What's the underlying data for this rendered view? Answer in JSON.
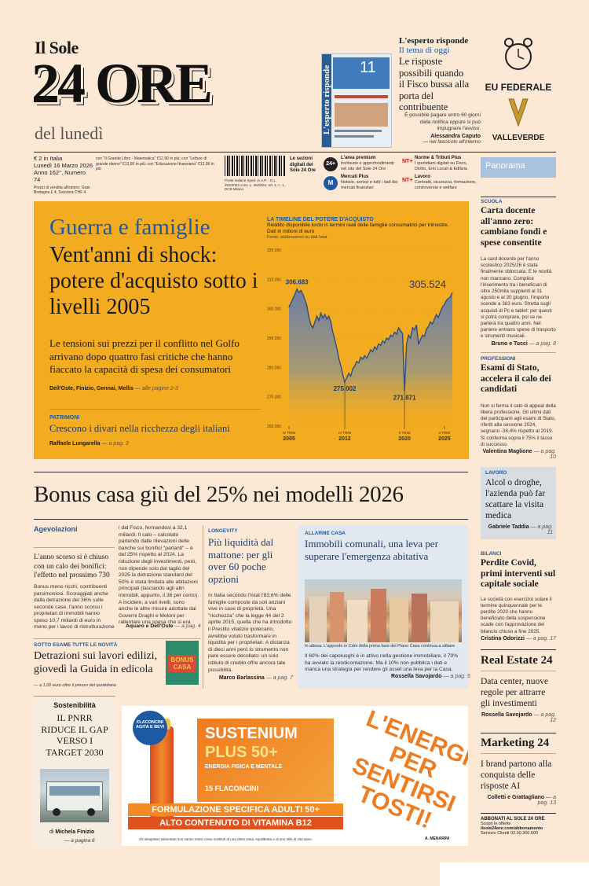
{
  "masthead": {
    "il_sole": "Il Sole",
    "name": "24 ORE",
    "edition": "del lunedì",
    "price": "€ 2 in Italia",
    "date": "Lunedì 16 Marzo 2026",
    "issue": "Anno 162°, Numero 74",
    "fine_print_1": "con \"Il Grande Libro - Matematica\" €12,90 in più; con \"Letture di grande danno\" €12,90 in più; con \"Educazione finanziaria\" €12,90 in più",
    "fine_print_2": "Prezzi di vendita all'estero: Gran Bretagna £ 4, Svizzera CHF 4",
    "sezioni_label": "Le sezioni digitali del Sole 24 Ore",
    "barcode_note": "Poste Italiane Sped. in A.P. - D.L. 353/2003 conv. L. 46/2004, art. 1, c. 1, DCB Milano"
  },
  "esperto": {
    "kicker": "L'esperto risponde",
    "subkicker": "Il tema di oggi",
    "headline": "Le risposte possibili quando il Fisco bussa alla porta del contribuente",
    "body": "È possibile pagare entro 60 giorni dalla notifica oppure si può impugnare l'avviso.",
    "author": "Alessandra Caputo",
    "ref": "— nel fascicolo all'interno",
    "cover_title": "L'esperto risponde",
    "cover_number": "11"
  },
  "services": [
    {
      "icon": "24+",
      "title": "L'area premium",
      "text": "Inchieste e approfondimenti nel sito del Sole 24 Ore"
    },
    {
      "icon": "NT+",
      "title": "Norme & Tributi Plus",
      "text": "I quotidiani digitali su Fisco, Diritto, Enti Locali & Edilizia"
    },
    {
      "icon": "M",
      "title": "Mercati Plus",
      "text": "Notizie, servizi e tutti i dati dei mercati finanziari"
    },
    {
      "icon": "NT+",
      "title": "Lavoro",
      "text": "Contratti, sicurezza, formazione, controversie e welfare"
    }
  ],
  "ad_top": {
    "line1": "EU FEDERALE",
    "line2": "VALLEVERDE"
  },
  "lead": {
    "kicker": "Guerra e famiglie",
    "headline": "Vent'anni di shock: potere d'acquisto sotto i livelli 2005",
    "summary": "Le tensioni sui prezzi per il conflitto nel Golfo arrivano dopo quattro fasi critiche che hanno fiaccato la capacità di spesa dei consumatori",
    "authors": "Dell'Oste, Finizio, Gennai, Mellis",
    "pages": "— alle pagine 2-3",
    "sub_tag": "Patrimoni",
    "sub_headline": "Crescono i divari nella ricchezza degli italiani",
    "sub_author": "Raffaele Lungarella",
    "sub_page": "— a pag. 3"
  },
  "chart_data": {
    "type": "area",
    "title": "LA TIMELINE DEL POTERE D'ACQUISTO",
    "subtitle": "Reddito disponibile lordo in termini reali delle famiglie consumatrici per trimestre. Dati in milioni di euro",
    "source": "Fonte: elaborazioni su dati Istat",
    "ylim": [
      260000,
      320000
    ],
    "y_ticks": [
      "320.000",
      "310.000",
      "300.000",
      "290.000",
      "280.000",
      "270.000",
      "260.000"
    ],
    "y_tick_values": [
      320000,
      310000,
      300000,
      290000,
      280000,
      270000,
      260000
    ],
    "x_ticks": [
      {
        "q": "IV TRIM",
        "year": "2005",
        "i": 0
      },
      {
        "q": "IV TRIM",
        "year": "2012",
        "i": 28
      },
      {
        "q": "II TRIM",
        "year": "2020",
        "i": 58
      },
      {
        "q": "II TRIM",
        "year": "2025",
        "i": 78
      }
    ],
    "annotations": [
      {
        "label": "306.683",
        "i": 4,
        "value": 306683
      },
      {
        "label": "275.002",
        "i": 28,
        "value": 275002
      },
      {
        "label": "271.871",
        "i": 58,
        "value": 271871
      },
      {
        "label": "305.524",
        "i": 82,
        "value": 305524
      }
    ],
    "values": [
      300500,
      302000,
      303500,
      305000,
      306683,
      305500,
      306200,
      304800,
      303000,
      301000,
      297000,
      294500,
      293500,
      295500,
      297500,
      296000,
      298500,
      296800,
      298000,
      296500,
      297500,
      295500,
      292000,
      289500,
      286500,
      283000,
      280500,
      277500,
      275002,
      276500,
      278000,
      277000,
      279500,
      280500,
      282000,
      281500,
      283500,
      282800,
      284000,
      283200,
      284500,
      286000,
      285300,
      287000,
      286200,
      288000,
      287500,
      289000,
      288300,
      290000,
      289500,
      291000,
      290500,
      292000,
      291300,
      293500,
      292500,
      291500,
      271871,
      288000,
      291000,
      290000,
      293500,
      292800,
      294500,
      287800,
      289500,
      291000,
      290500,
      293000,
      294000,
      295500,
      294800,
      296500,
      298000,
      297000,
      299000,
      300500,
      301500,
      302800,
      303500,
      304000,
      305524
    ]
  },
  "bonus": {
    "headline": "Bonus casa giù del 25% nei modelli 2026",
    "col1_tag": "Agevolazioni",
    "col1_lead": "L'anno scorso si è chiuso con un calo dei bonifici: l'effetto nel prossimo 730",
    "col1_body": "Bonus meno ricchi, contribuenti parsimoniosi. Scoraggiati anche dalla detrazione del 36% sulle seconde case, l'anno scorso i proprietari di immobili hanno speso 10,7 miliardi di euro in meno per i lavori di ristrutturazione e risparmio energetico agevolati dal Fisco, fermandosi a 32,1 miliardi. Il calo – calcolato partendo dalle rilevazioni delle banche sui bonifici \"parlanti\" – è del 25% rispetto al 2024. La riduzione degli investimenti, però, non dipende solo dal taglio del 2025 la detrazione standard del 50% è stata limitata alle abitazioni principali (lasciando agli altri immobili, appunto, il 36 per cento). A incidere, a vari livelli, sono anche le altre misure adottate dai Governi Draghi e Meloni per rallentare una spesa che si era impennata nella stagione più calda del superbonus.",
    "col1_authors": "Aquaro e Dell'Oste",
    "col1_page": "— a pag. 4",
    "guida_tag": "Sotto esame tutte le novità",
    "guida_headline": "Detrazioni sui lavori edilizi, giovedì la Guida in edicola",
    "guida_note": "— a 1,00 euro oltre il prezzo del quotidiano",
    "guida_cover": "BONUS CASA",
    "col2_tag": "Longevity",
    "col2_headline": "Più liquidità dal mattone: per gli over 60 poche opzioni",
    "col2_body": "In Italia secondo l'Istat l'83,6% delle famiglie composte da soli anziani vive in case di proprietà. Una \"ricchezza\" che la legge 44 del 2 aprile 2015, quella che ha introdotto il Prestito vitalizio ipotecario, avrebbe voluto trasformare in liquidità per i proprietari. A distanza di dieci anni però lo strumento non pare essere decollato: un solo istituto di credito offre ancora tale possibilità.",
    "col2_author": "Marco Barlassina",
    "col2_page": "— a pag. 7",
    "col3_tag": "Allarme casa",
    "col3_headline": "Immobili comunali, una leva per superare l'emergenza abitativa",
    "col3_caption": "In attesa. L'approdo in Cdm della prima fase del Piano Casa continua a slittare",
    "col3_body": "Il 60% dei capoluoghi è in attivo nella gestione immobiliare, il 70% ha avviato la rendicontazione. Ma il 10% non pubblica i dati e manca una strategia per rendere gli asset una leva per la Casa.",
    "col3_author": "Rossella Savojardo",
    "col3_page": "— a pag. 5"
  },
  "sostenibilita": {
    "tag": "Sostenibilità",
    "headline": "IL PNRR RIDUCE IL GAP VERSO I TARGET 2030",
    "byline_prefix": "di",
    "author": "Michela Finizio",
    "page": "— a pagina 6"
  },
  "ad_bottom": {
    "badge": "FLACONCINI AGITA E BEVI",
    "brand": "SUSTENIUM",
    "plus": "PLUS 50+",
    "sub": "ENERGIA FISICA E MENTALE",
    "count": "15 FLACONCINI",
    "slogan": "L'ENERGIA PER SENTIRSI TOSTI!",
    "band1": "FORMULAZIONE SPECIFICA ADULTI 50+",
    "band2": "ALTO CONTENUTO DI VITAMINA B12",
    "disclaimer": "Gli integratori alimentari non vanno intesi come sostituti di una dieta varia, equilibrata e di uno stile di vita sano.",
    "maker": "A. MENARINI"
  },
  "sidebar": {
    "panorama": "Panorama",
    "items": [
      {
        "tag": "Scuola",
        "headline": "Carta docente all'anno zero: cambiano fondi e spese consentite",
        "body": "La card docente per l'anno scolastico 2025/26 è stata finalmente sbloccata. E le novità non mancano. Complice l'inserimento tra i beneficiari di oltre 250mila supplenti al 31 agosto e al 30 giugno, l'importo scende a 383 euro. Stretta sugli acquisti di Pc e tablet: per questi si potrà comprare, poi se ne parlerà tra quattro anni. Nel paniere entrano spese di trasporto e strumenti musicali.",
        "author": "Bruno e Tucci",
        "page": "— a pag. 8"
      },
      {
        "tag": "Professioni",
        "headline": "Esami di Stato, accelera il calo dei candidati",
        "body": "Non si ferma il calo di appeal della libera professione. Gli ultimi dati del participanti agli esami di Stato, riferiti alla sessione 2024, segnano -38,4% rispetto al 2019. Si conferma sopra il 75% il tasso di successo.",
        "author": "Valentina Maglione",
        "page": "— a pag. 10"
      },
      {
        "tag": "Lavoro",
        "headline": "Alcol o droghe, l'azienda può far scattare la visita medica",
        "author": "Gabriele Taddia",
        "page": "— a pag. 11"
      },
      {
        "tag": "Bilanci",
        "headline": "Perdite Covid, primi interventi sul capitale sociale",
        "body": "Le società con esercizio solare il termine quinquennale per le perdite 2020 che hanno beneficiato della sospensione scade con l'approvazione del bilancio chiuso a fine 2025.",
        "author": "Cristina Odorizzi",
        "page": "— a pag. 17"
      }
    ],
    "re_title": "Real Estate 24",
    "re_headline": "Data center, nuove regole per attrarre gli investimenti",
    "re_author": "Rossella Savojardo",
    "re_page": "— a pag. 12",
    "mk_title": "Marketing 24",
    "mk_headline": "I brand partono alla conquista delle risposte AI",
    "mk_author": "Colletti e Grattagliano",
    "mk_page": "— a pag. 13",
    "abb_title": "ABBONATI AL SOLE 24 ORE",
    "abb_l1": "Scopri le offerte",
    "abb_l2": "ilsole24ore.com/abbonamento",
    "abb_l3": "Servizio Clienti 02.30.300.600"
  }
}
